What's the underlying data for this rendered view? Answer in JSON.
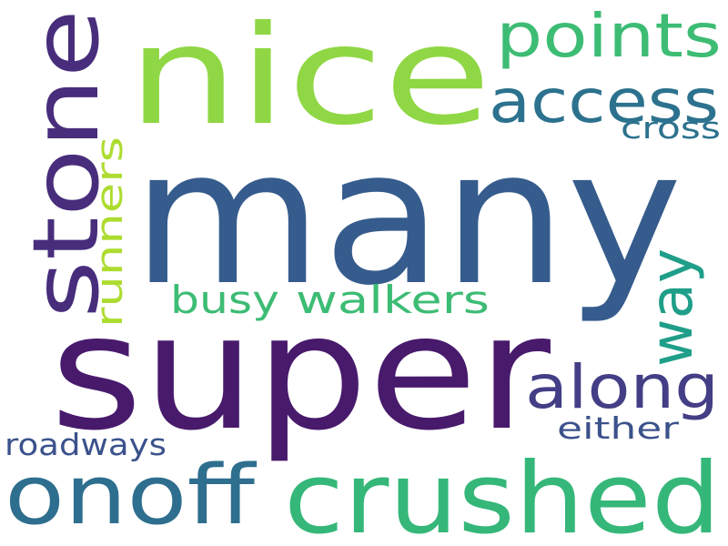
{
  "words": [
    {
      "text": "many",
      "color": "#365c8d",
      "orientation": "horizontal"
    },
    {
      "text": "super",
      "color": "#481a6c",
      "orientation": "horizontal"
    },
    {
      "text": "nice",
      "color": "#8fd744",
      "orientation": "horizontal"
    },
    {
      "text": "crushed",
      "color": "#35b779",
      "orientation": "horizontal"
    },
    {
      "text": "stone",
      "color": "#472d7b",
      "orientation": "vertical"
    },
    {
      "text": "onoff",
      "color": "#2e6e8e",
      "orientation": "horizontal"
    },
    {
      "text": "points",
      "color": "#3dbc74",
      "orientation": "horizontal"
    },
    {
      "text": "access",
      "color": "#2c728e",
      "orientation": "horizontal"
    },
    {
      "text": "along",
      "color": "#433e85",
      "orientation": "horizontal"
    },
    {
      "text": "way",
      "color": "#1f9e89",
      "orientation": "vertical"
    },
    {
      "text": "walkers",
      "color": "#3dbc74",
      "orientation": "horizontal"
    },
    {
      "text": "busy",
      "color": "#3dbc74",
      "orientation": "horizontal"
    },
    {
      "text": "runners",
      "color": "#addc30",
      "orientation": "vertical"
    },
    {
      "text": "cross",
      "color": "#2c728e",
      "orientation": "horizontal"
    },
    {
      "text": "either",
      "color": "#3b528b",
      "orientation": "horizontal"
    },
    {
      "text": "roadways",
      "color": "#3b528b",
      "orientation": "horizontal"
    }
  ]
}
